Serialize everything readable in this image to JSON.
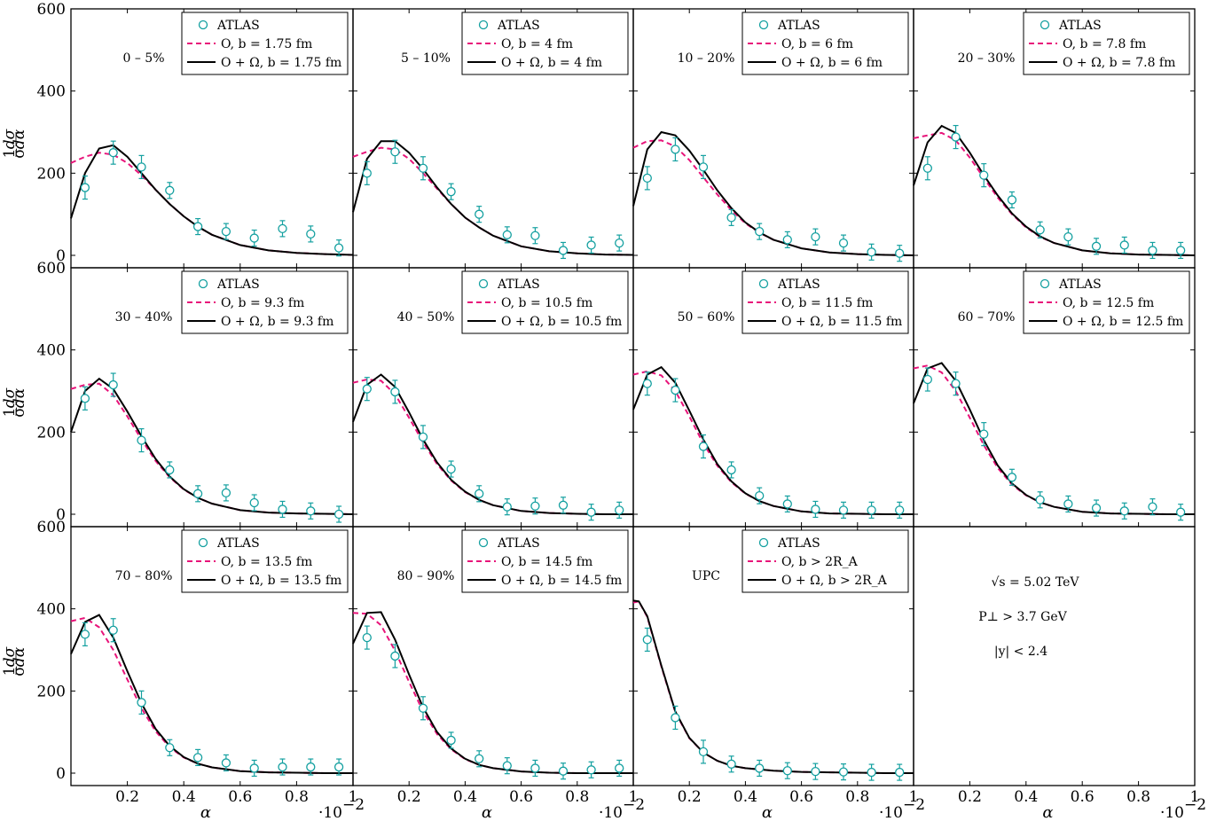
{
  "colors": {
    "atlas": "#14a0a0",
    "model_O": "#e8147a",
    "model_O_Omega": "#000000"
  },
  "axes": {
    "xlabel": "α",
    "ylabel_numerator": "1",
    "ylabel_fraction": "dσ",
    "ylabel_denominator": "σ",
    "ylabel_denominator_fraction": "dα",
    "x_multiplier": "·10",
    "x_multiplier_exponent": "−2",
    "xlim": [
      0,
      1
    ],
    "ylim": [
      -30,
      600
    ],
    "x_ticks": [
      "0.2",
      "0.4",
      "0.6",
      "0.8",
      "1"
    ],
    "y_ticks": [
      "0",
      "200",
      "400",
      "600"
    ]
  },
  "info": {
    "energy": "√s = 5.02 TeV",
    "pt_cut": "P⊥ > 3.7 GeV",
    "rapidity": "|y| < 2.4"
  },
  "chart_data": [
    {
      "type": "line",
      "panel": "0 – 5%",
      "legend": [
        "ATLAS",
        "O, b = 1.75 fm",
        "O + Ω, b = 1.75 fm"
      ],
      "atlas": {
        "x": [
          0.05,
          0.15,
          0.25,
          0.35,
          0.45,
          0.55,
          0.65,
          0.75,
          0.85,
          0.95
        ],
        "y": [
          165,
          250,
          215,
          158,
          70,
          58,
          42,
          65,
          52,
          18
        ]
      },
      "O": {
        "x": [
          0,
          0.05,
          0.1,
          0.15,
          0.2,
          0.25,
          0.3,
          0.35,
          0.4,
          0.45,
          0.5,
          0.6,
          0.7,
          0.8,
          0.9,
          1.0
        ],
        "y": [
          225,
          240,
          250,
          245,
          225,
          195,
          160,
          125,
          95,
          70,
          50,
          25,
          12,
          6,
          3,
          1
        ]
      },
      "O_Omega": {
        "x": [
          0,
          0.05,
          0.1,
          0.15,
          0.2,
          0.25,
          0.3,
          0.35,
          0.4,
          0.45,
          0.5,
          0.6,
          0.7,
          0.8,
          0.9,
          1.0
        ],
        "y": [
          90,
          200,
          260,
          268,
          240,
          200,
          160,
          125,
          95,
          70,
          50,
          25,
          12,
          6,
          3,
          1
        ]
      }
    },
    {
      "type": "line",
      "panel": "5 – 10%",
      "legend": [
        "ATLAS",
        "O, b = 4 fm",
        "O + Ω, b = 4 fm"
      ],
      "atlas": {
        "x": [
          0.05,
          0.15,
          0.25,
          0.35,
          0.45,
          0.55,
          0.65,
          0.75,
          0.85,
          0.95
        ],
        "y": [
          200,
          252,
          212,
          155,
          100,
          50,
          48,
          12,
          25,
          30
        ]
      },
      "O": {
        "x": [
          0,
          0.05,
          0.1,
          0.15,
          0.2,
          0.25,
          0.3,
          0.35,
          0.4,
          0.45,
          0.5,
          0.6,
          0.7,
          0.8,
          0.9,
          1.0
        ],
        "y": [
          240,
          252,
          262,
          258,
          235,
          200,
          162,
          125,
          92,
          68,
          48,
          22,
          10,
          5,
          2,
          1
        ]
      },
      "O_Omega": {
        "x": [
          0,
          0.05,
          0.1,
          0.15,
          0.2,
          0.25,
          0.3,
          0.35,
          0.4,
          0.45,
          0.5,
          0.6,
          0.7,
          0.8,
          0.9,
          1.0
        ],
        "y": [
          105,
          235,
          278,
          278,
          250,
          210,
          165,
          125,
          92,
          68,
          48,
          22,
          10,
          5,
          2,
          1
        ]
      }
    },
    {
      "type": "line",
      "panel": "10 – 20%",
      "legend": [
        "ATLAS",
        "O, b = 6 fm",
        "O + Ω, b = 6 fm"
      ],
      "atlas": {
        "x": [
          0.05,
          0.15,
          0.25,
          0.35,
          0.45,
          0.55,
          0.65,
          0.75,
          0.85,
          0.95
        ],
        "y": [
          188,
          258,
          215,
          92,
          58,
          38,
          45,
          30,
          8,
          5
        ]
      },
      "O": {
        "x": [
          0,
          0.05,
          0.1,
          0.15,
          0.2,
          0.25,
          0.3,
          0.35,
          0.4,
          0.45,
          0.5,
          0.6,
          0.7,
          0.8,
          0.9,
          1.0
        ],
        "y": [
          262,
          278,
          280,
          265,
          232,
          190,
          148,
          110,
          78,
          55,
          38,
          17,
          7,
          3,
          1,
          0
        ]
      },
      "O_Omega": {
        "x": [
          0,
          0.05,
          0.1,
          0.15,
          0.2,
          0.25,
          0.3,
          0.35,
          0.4,
          0.45,
          0.5,
          0.6,
          0.7,
          0.8,
          0.9,
          1.0
        ],
        "y": [
          120,
          258,
          300,
          292,
          255,
          208,
          158,
          115,
          80,
          56,
          38,
          17,
          7,
          3,
          1,
          0
        ]
      }
    },
    {
      "type": "line",
      "panel": "20 – 30%",
      "legend": [
        "ATLAS",
        "O, b = 7.8 fm",
        "O + Ω, b = 7.8 fm"
      ],
      "atlas": {
        "x": [
          0.05,
          0.15,
          0.25,
          0.35,
          0.45,
          0.55,
          0.65,
          0.75,
          0.85,
          0.95
        ],
        "y": [
          212,
          288,
          195,
          135,
          62,
          45,
          22,
          25,
          12,
          12
        ]
      },
      "O": {
        "x": [
          0,
          0.05,
          0.1,
          0.15,
          0.2,
          0.25,
          0.3,
          0.35,
          0.4,
          0.45,
          0.5,
          0.6,
          0.7,
          0.8,
          0.9,
          1.0
        ],
        "y": [
          285,
          292,
          298,
          280,
          238,
          188,
          140,
          100,
          68,
          45,
          30,
          12,
          5,
          2,
          1,
          0
        ]
      },
      "O_Omega": {
        "x": [
          0,
          0.05,
          0.1,
          0.15,
          0.2,
          0.25,
          0.3,
          0.35,
          0.4,
          0.45,
          0.5,
          0.6,
          0.7,
          0.8,
          0.9,
          1.0
        ],
        "y": [
          170,
          275,
          315,
          298,
          250,
          195,
          145,
          102,
          70,
          46,
          30,
          12,
          5,
          2,
          1,
          0
        ]
      }
    },
    {
      "type": "line",
      "panel": "30 – 40%",
      "legend": [
        "ATLAS",
        "O, b = 9.3 fm",
        "O + Ω, b = 9.3 fm"
      ],
      "atlas": {
        "x": [
          0.05,
          0.15,
          0.25,
          0.35,
          0.45,
          0.55,
          0.65,
          0.75,
          0.85,
          0.95
        ],
        "y": [
          282,
          315,
          180,
          108,
          50,
          52,
          28,
          12,
          8,
          0
        ]
      },
      "O": {
        "x": [
          0,
          0.05,
          0.1,
          0.15,
          0.2,
          0.25,
          0.3,
          0.35,
          0.4,
          0.45,
          0.5,
          0.6,
          0.7,
          0.8,
          0.9,
          1.0
        ],
        "y": [
          305,
          315,
          318,
          290,
          238,
          182,
          130,
          90,
          60,
          40,
          26,
          10,
          4,
          2,
          1,
          0
        ]
      },
      "O_Omega": {
        "x": [
          0,
          0.05,
          0.1,
          0.15,
          0.2,
          0.25,
          0.3,
          0.35,
          0.4,
          0.45,
          0.5,
          0.6,
          0.7,
          0.8,
          0.9,
          1.0
        ],
        "y": [
          200,
          300,
          330,
          305,
          250,
          190,
          135,
          92,
          61,
          40,
          26,
          10,
          4,
          2,
          1,
          0
        ]
      }
    },
    {
      "type": "line",
      "panel": "40 – 50%",
      "legend": [
        "ATLAS",
        "O, b = 10.5 fm",
        "O + Ω, b = 10.5 fm"
      ],
      "atlas": {
        "x": [
          0.05,
          0.15,
          0.25,
          0.35,
          0.45,
          0.55,
          0.65,
          0.75,
          0.85,
          0.95
        ],
        "y": [
          305,
          298,
          188,
          110,
          50,
          18,
          20,
          22,
          5,
          10
        ]
      },
      "O": {
        "x": [
          0,
          0.05,
          0.1,
          0.15,
          0.2,
          0.25,
          0.3,
          0.35,
          0.4,
          0.45,
          0.5,
          0.6,
          0.7,
          0.8,
          0.9,
          1.0
        ],
        "y": [
          320,
          328,
          325,
          292,
          235,
          175,
          122,
          82,
          54,
          35,
          22,
          8,
          3,
          1,
          0,
          0
        ]
      },
      "O_Omega": {
        "x": [
          0,
          0.05,
          0.1,
          0.15,
          0.2,
          0.25,
          0.3,
          0.35,
          0.4,
          0.45,
          0.5,
          0.6,
          0.7,
          0.8,
          0.9,
          1.0
        ],
        "y": [
          225,
          315,
          340,
          310,
          248,
          182,
          126,
          84,
          55,
          35,
          22,
          8,
          3,
          1,
          0,
          0
        ]
      }
    },
    {
      "type": "line",
      "panel": "50 – 60%",
      "legend": [
        "ATLAS",
        "O, b = 11.5 fm",
        "O + Ω, b = 11.5 fm"
      ],
      "atlas": {
        "x": [
          0.05,
          0.15,
          0.25,
          0.35,
          0.45,
          0.55,
          0.65,
          0.75,
          0.85,
          0.95
        ],
        "y": [
          318,
          302,
          165,
          108,
          45,
          25,
          12,
          10,
          10,
          10
        ]
      },
      "O": {
        "x": [
          0,
          0.05,
          0.1,
          0.15,
          0.2,
          0.25,
          0.3,
          0.35,
          0.4,
          0.45,
          0.5,
          0.6,
          0.7,
          0.8,
          0.9,
          1.0
        ],
        "y": [
          340,
          348,
          338,
          300,
          238,
          172,
          118,
          78,
          50,
          32,
          20,
          7,
          2,
          1,
          0,
          0
        ]
      },
      "O_Omega": {
        "x": [
          0,
          0.05,
          0.1,
          0.15,
          0.2,
          0.25,
          0.3,
          0.35,
          0.4,
          0.45,
          0.5,
          0.6,
          0.7,
          0.8,
          0.9,
          1.0
        ],
        "y": [
          255,
          340,
          358,
          320,
          252,
          182,
          122,
          80,
          51,
          32,
          20,
          7,
          2,
          1,
          0,
          0
        ]
      }
    },
    {
      "type": "line",
      "panel": "60 – 70%",
      "legend": [
        "ATLAS",
        "O, b = 12.5 fm",
        "O + Ω, b = 12.5 fm"
      ],
      "atlas": {
        "x": [
          0.05,
          0.15,
          0.25,
          0.35,
          0.45,
          0.55,
          0.65,
          0.75,
          0.85,
          0.95
        ],
        "y": [
          328,
          318,
          195,
          90,
          35,
          25,
          15,
          8,
          18,
          5
        ]
      },
      "O": {
        "x": [
          0,
          0.05,
          0.1,
          0.15,
          0.2,
          0.25,
          0.3,
          0.35,
          0.4,
          0.45,
          0.5,
          0.6,
          0.7,
          0.8,
          0.9,
          1.0
        ],
        "y": [
          355,
          362,
          345,
          300,
          235,
          168,
          112,
          72,
          46,
          29,
          18,
          6,
          2,
          1,
          0,
          0
        ]
      },
      "O_Omega": {
        "x": [
          0,
          0.05,
          0.1,
          0.15,
          0.2,
          0.25,
          0.3,
          0.35,
          0.4,
          0.45,
          0.5,
          0.6,
          0.7,
          0.8,
          0.9,
          1.0
        ],
        "y": [
          270,
          355,
          368,
          325,
          255,
          180,
          118,
          75,
          47,
          29,
          18,
          6,
          2,
          1,
          0,
          0
        ]
      }
    },
    {
      "type": "line",
      "panel": "70 – 80%",
      "legend": [
        "ATLAS",
        "O, b = 13.5 fm",
        "O + Ω, b = 13.5 fm"
      ],
      "atlas": {
        "x": [
          0.05,
          0.15,
          0.25,
          0.35,
          0.45,
          0.55,
          0.65,
          0.75,
          0.85,
          0.95
        ],
        "y": [
          338,
          348,
          172,
          62,
          38,
          25,
          12,
          15,
          15,
          15
        ]
      },
      "O": {
        "x": [
          0,
          0.05,
          0.1,
          0.15,
          0.2,
          0.25,
          0.3,
          0.35,
          0.4,
          0.45,
          0.5,
          0.6,
          0.7,
          0.8,
          0.9,
          1.0
        ],
        "y": [
          370,
          378,
          355,
          300,
          228,
          158,
          102,
          63,
          38,
          23,
          14,
          5,
          2,
          1,
          0,
          0
        ]
      },
      "O_Omega": {
        "x": [
          0,
          0.05,
          0.1,
          0.15,
          0.2,
          0.25,
          0.3,
          0.35,
          0.4,
          0.45,
          0.5,
          0.6,
          0.7,
          0.8,
          0.9,
          1.0
        ],
        "y": [
          290,
          368,
          385,
          330,
          248,
          170,
          108,
          66,
          39,
          23,
          14,
          5,
          2,
          1,
          0,
          0
        ]
      }
    },
    {
      "type": "line",
      "panel": "80 – 90%",
      "legend": [
        "ATLAS",
        "O, b = 14.5 fm",
        "O + Ω, b = 14.5 fm"
      ],
      "atlas": {
        "x": [
          0.05,
          0.15,
          0.25,
          0.35,
          0.45,
          0.55,
          0.65,
          0.75,
          0.85,
          0.95
        ],
        "y": [
          330,
          285,
          158,
          80,
          35,
          18,
          12,
          5,
          8,
          12
        ]
      },
      "O": {
        "x": [
          0,
          0.05,
          0.1,
          0.15,
          0.2,
          0.25,
          0.3,
          0.35,
          0.4,
          0.45,
          0.5,
          0.6,
          0.7,
          0.8,
          0.9,
          1.0
        ],
        "y": [
          390,
          388,
          360,
          298,
          222,
          150,
          95,
          58,
          34,
          20,
          12,
          4,
          1,
          0,
          0,
          0
        ]
      },
      "O_Omega": {
        "x": [
          0,
          0.05,
          0.1,
          0.15,
          0.2,
          0.25,
          0.3,
          0.35,
          0.4,
          0.45,
          0.5,
          0.6,
          0.7,
          0.8,
          0.9,
          1.0
        ],
        "y": [
          315,
          390,
          392,
          325,
          240,
          160,
          100,
          60,
          35,
          20,
          12,
          4,
          1,
          0,
          0,
          0
        ]
      }
    },
    {
      "type": "line",
      "panel": "UPC",
      "legend": [
        "ATLAS",
        "O, b > 2R_A",
        "O + Ω, b > 2R_A"
      ],
      "atlas": {
        "x": [
          0.05,
          0.15,
          0.25,
          0.35,
          0.45,
          0.55,
          0.65,
          0.75,
          0.85,
          0.95
        ],
        "y": [
          325,
          135,
          52,
          22,
          12,
          6,
          4,
          3,
          2,
          2
        ]
      },
      "O": {
        "x": [
          0,
          0.02,
          0.05,
          0.1,
          0.15,
          0.2,
          0.25,
          0.3,
          0.35,
          0.4,
          0.5,
          0.6,
          0.7,
          0.8,
          0.9,
          1.0
        ],
        "y": [
          415,
          418,
          380,
          260,
          148,
          85,
          50,
          30,
          18,
          12,
          6,
          3,
          2,
          1,
          0,
          0
        ]
      },
      "O_Omega": {
        "x": [
          0,
          0.02,
          0.05,
          0.1,
          0.15,
          0.2,
          0.25,
          0.3,
          0.35,
          0.4,
          0.5,
          0.6,
          0.7,
          0.8,
          0.9,
          1.0
        ],
        "y": [
          420,
          418,
          382,
          262,
          150,
          86,
          50,
          30,
          18,
          12,
          6,
          3,
          2,
          1,
          0,
          0
        ]
      }
    }
  ]
}
